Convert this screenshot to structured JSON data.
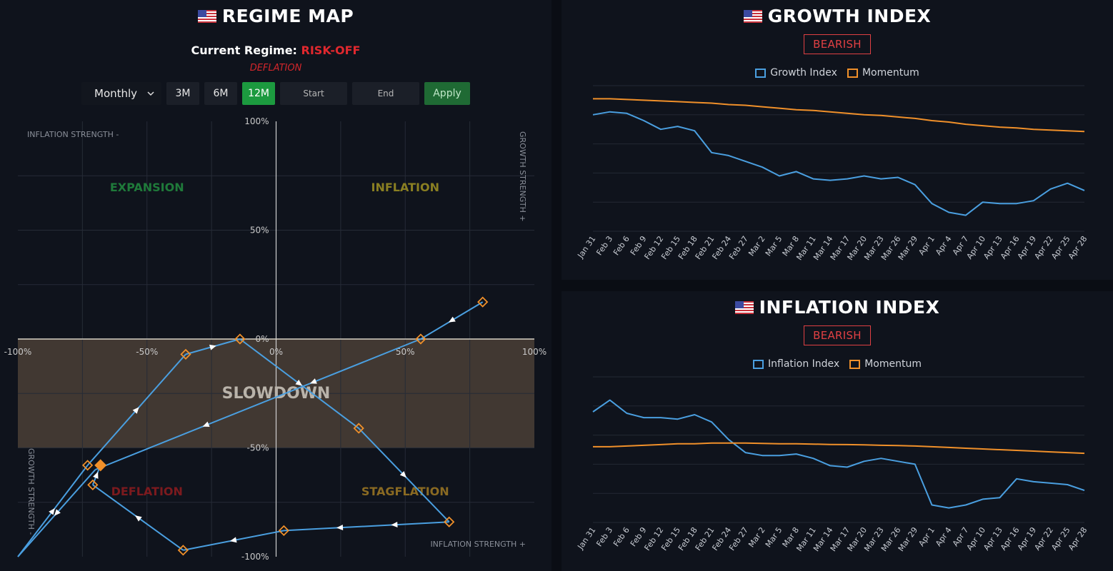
{
  "regime_map": {
    "title": "REGIME MAP",
    "current_label": "Current Regime:",
    "current_value": "RISK-OFF",
    "sub_regime": "DEFLATION",
    "controls": {
      "period_select": "Monthly",
      "range_buttons": [
        "3M",
        "6M",
        "12M"
      ],
      "active_range": "12M",
      "start_placeholder": "Start",
      "end_placeholder": "End",
      "apply_label": "Apply"
    }
  },
  "growth_index": {
    "title": "GROWTH INDEX",
    "badge": "BEARISH",
    "legend": [
      "Growth Index",
      "Momentum"
    ]
  },
  "inflation_index": {
    "title": "INFLATION INDEX",
    "badge": "BEARISH",
    "legend": [
      "Inflation Index",
      "Momentum"
    ]
  },
  "colors": {
    "series_blue": "#4a9fe0",
    "momentum_orange": "#f0902a",
    "active_green": "#1c9a3f",
    "bearish_red": "#e04043",
    "slowdown_band": "#4a4036"
  },
  "chart_data": [
    {
      "type": "scatter",
      "title": "REGIME MAP",
      "xlim": [
        -100,
        100
      ],
      "ylim": [
        -100,
        100
      ],
      "x_ticks": [
        "-100%",
        "-50%",
        "0%",
        "50%",
        "100%"
      ],
      "y_ticks": [
        "100%",
        "50%",
        "0%",
        "-50%",
        "-100%"
      ],
      "axis_labels": {
        "top_left": "INFLATION STRENGTH -",
        "bottom_right": "INFLATION STRENGTH +",
        "right_top": "GROWTH STRENGTH +",
        "left_bottom": "GROWTH STRENGTH -"
      },
      "regions": [
        "EXPANSION",
        "INFLATION",
        "SLOWDOWN",
        "DEFLATION",
        "STAGFLATION"
      ],
      "slowdown_band": [
        -50,
        0
      ],
      "grid": true,
      "path": [
        {
          "x": 80,
          "y": 17
        },
        {
          "x": 56,
          "y": 0
        },
        {
          "x": -70,
          "y": -60
        },
        {
          "x": -100,
          "y": -100
        },
        {
          "x": -73,
          "y": -58
        },
        {
          "x": -35,
          "y": -7
        },
        {
          "x": -14,
          "y": 0
        },
        {
          "x": 32,
          "y": -41
        },
        {
          "x": 67,
          "y": -84
        },
        {
          "x": 3,
          "y": -88
        },
        {
          "x": -36,
          "y": -97
        },
        {
          "x": -71,
          "y": -67
        },
        {
          "x": -68,
          "y": -58
        }
      ],
      "markers": [
        {
          "x": 80,
          "y": 17
        },
        {
          "x": 56,
          "y": 0
        },
        {
          "x": -73,
          "y": -58
        },
        {
          "x": -35,
          "y": -7
        },
        {
          "x": -14,
          "y": 0
        },
        {
          "x": 32,
          "y": -41
        },
        {
          "x": 67,
          "y": -84
        },
        {
          "x": 3,
          "y": -88
        },
        {
          "x": -36,
          "y": -97
        },
        {
          "x": -71,
          "y": -67
        }
      ],
      "current": {
        "x": -68,
        "y": -58
      }
    },
    {
      "type": "line",
      "title": "GROWTH INDEX",
      "categories": [
        "Jan 31",
        "Feb 3",
        "Feb 6",
        "Feb 9",
        "Feb 12",
        "Feb 15",
        "Feb 18",
        "Feb 21",
        "Feb 24",
        "Feb 27",
        "Mar 2",
        "Mar 5",
        "Mar 8",
        "Mar 11",
        "Mar 14",
        "Mar 17",
        "Mar 20",
        "Mar 23",
        "Mar 26",
        "Mar 29",
        "Apr 1",
        "Apr 4",
        "Apr 7",
        "Apr 10",
        "Apr 13",
        "Apr 16",
        "Apr 19",
        "Apr 22",
        "Apr 25",
        "Apr 28"
      ],
      "ylim": [
        0,
        100
      ],
      "grid": true,
      "series": [
        {
          "name": "Growth Index",
          "values": [
            80,
            82,
            81,
            76,
            70,
            72,
            69,
            54,
            52,
            48,
            44,
            38,
            41,
            36,
            35,
            36,
            38,
            36,
            37,
            32,
            19,
            13,
            11,
            20,
            19,
            19,
            21,
            29,
            33,
            28
          ]
        },
        {
          "name": "Momentum",
          "values": [
            91,
            91,
            90.5,
            90,
            89.5,
            89,
            88.5,
            88,
            87,
            86.5,
            85.5,
            84.5,
            83.5,
            83,
            82,
            81,
            80,
            79.5,
            78.5,
            77.5,
            76,
            75,
            73.5,
            72.5,
            71.5,
            71,
            70,
            69.5,
            69,
            68.5
          ]
        }
      ]
    },
    {
      "type": "line",
      "title": "INFLATION INDEX",
      "categories": [
        "Jan 31",
        "Feb 3",
        "Feb 6",
        "Feb 9",
        "Feb 12",
        "Feb 15",
        "Feb 18",
        "Feb 21",
        "Feb 24",
        "Feb 27",
        "Mar 2",
        "Mar 5",
        "Mar 8",
        "Mar 11",
        "Mar 14",
        "Mar 17",
        "Mar 20",
        "Mar 23",
        "Mar 26",
        "Mar 29",
        "Apr 1",
        "Apr 4",
        "Apr 7",
        "Apr 10",
        "Apr 13",
        "Apr 16",
        "Apr 19",
        "Apr 22",
        "Apr 25",
        "Apr 28"
      ],
      "ylim": [
        0,
        100
      ],
      "grid": true,
      "series": [
        {
          "name": "Inflation Index",
          "values": [
            76,
            84,
            75,
            72,
            72,
            71,
            74,
            69,
            57,
            48,
            46,
            46,
            47,
            44,
            39,
            38,
            42,
            44,
            42,
            40,
            12,
            10,
            12,
            16,
            17,
            30,
            28,
            27,
            26,
            22
          ]
        },
        {
          "name": "Momentum",
          "values": [
            52,
            52,
            52.5,
            53,
            53.5,
            54,
            54,
            54.5,
            54.5,
            54.5,
            54.3,
            54,
            54,
            53.8,
            53.6,
            53.5,
            53.3,
            53,
            52.8,
            52.5,
            52,
            51.5,
            51,
            50.5,
            50,
            49.5,
            49,
            48.5,
            48,
            47.5
          ]
        }
      ]
    }
  ]
}
